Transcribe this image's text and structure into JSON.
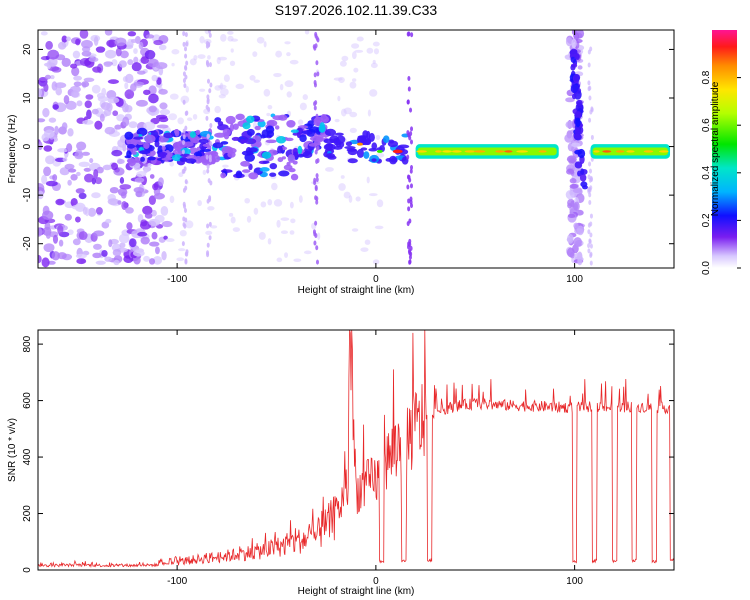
{
  "title": "S197.2026.102.11.39.C33",
  "chart_data": [
    {
      "type": "heatmap",
      "xlabel": "Height of straight line (km)",
      "ylabel": "Frequency (Hz)",
      "xlim": [
        -170,
        150
      ],
      "ylim": [
        -25,
        24
      ],
      "xticks": [
        -100,
        0,
        100
      ],
      "yticks": [
        -20,
        -10,
        0,
        10,
        20
      ],
      "colorbar": {
        "label": "Normalized spectral amplitude",
        "range": [
          0,
          1
        ],
        "ticks": [
          0.0,
          0.2,
          0.4,
          0.6,
          0.8
        ]
      },
      "features": [
        {
          "name": "noise-cloud",
          "x_range": [
            -170,
            -105
          ],
          "freq_range": [
            -24,
            24
          ],
          "amplitude": 0.15
        },
        {
          "name": "scattered-band",
          "x_range": [
            -125,
            -25
          ],
          "freq_center": 0,
          "freq_spread": 8,
          "amplitude": 0.3
        },
        {
          "name": "steady-band-1",
          "x_range": [
            20,
            92
          ],
          "freq_center": -1,
          "amplitude": 0.9
        },
        {
          "name": "vertical-burst",
          "x_range": [
            96,
            106
          ],
          "freq_range": [
            -24,
            24
          ],
          "amplitude": 0.2
        },
        {
          "name": "steady-band-2",
          "x_range": [
            108,
            148
          ],
          "freq_center": -1,
          "amplitude": 0.9
        }
      ]
    },
    {
      "type": "line",
      "xlabel": "Height of straight line (km)",
      "ylabel": "SNR (10 * v/v)",
      "xlim": [
        -170,
        150
      ],
      "ylim": [
        0,
        850
      ],
      "xticks": [
        -100,
        0,
        100
      ],
      "yticks": [
        0,
        200,
        400,
        600,
        800
      ],
      "series": [
        {
          "name": "SNR",
          "color": "#e8282a",
          "x": [
            -170,
            -150,
            -130,
            -110,
            -100,
            -90,
            -80,
            -70,
            -60,
            -50,
            -40,
            -30,
            -20,
            -14,
            -13,
            -10,
            0,
            5,
            10,
            15,
            20,
            25,
            30,
            40,
            50,
            60,
            80,
            100,
            110,
            120,
            130,
            140,
            150
          ],
          "y": [
            15,
            18,
            15,
            18,
            28,
            38,
            45,
            55,
            65,
            80,
            100,
            120,
            190,
            300,
            840,
            280,
            320,
            380,
            430,
            470,
            500,
            540,
            560,
            580,
            590,
            585,
            580,
            575,
            580,
            575,
            580,
            575,
            575
          ]
        }
      ],
      "dropouts": [
        {
          "x": 3,
          "value": 25
        },
        {
          "x": 14,
          "value": 25
        },
        {
          "x": 27,
          "value": 30
        },
        {
          "x": 100,
          "value": 25
        },
        {
          "x": 110,
          "value": 28
        },
        {
          "x": 120,
          "value": 25
        },
        {
          "x": 130,
          "value": 28
        },
        {
          "x": 140,
          "value": 25
        },
        {
          "x": 149,
          "value": 30
        }
      ]
    }
  ]
}
